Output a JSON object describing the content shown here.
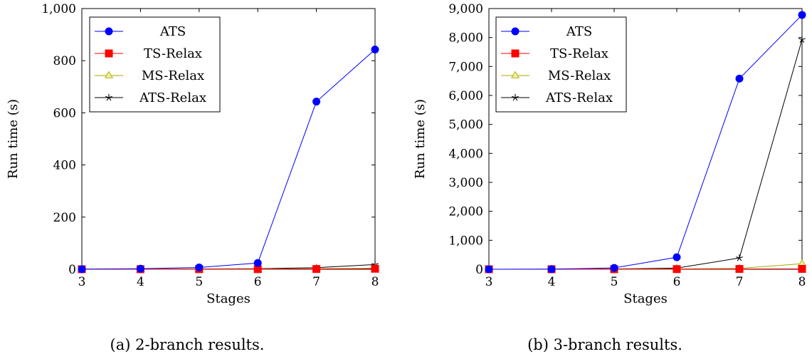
{
  "chart_data": [
    {
      "type": "line",
      "caption": "(a) 2-branch results.",
      "xlabel": "Stages",
      "ylabel": "Run time (s)",
      "xlim": [
        3,
        8
      ],
      "ylim": [
        0,
        1000
      ],
      "xticks": [
        3,
        4,
        5,
        6,
        7,
        8
      ],
      "yticks": [
        0,
        200,
        400,
        600,
        800,
        1000
      ],
      "ytick_labels": [
        "0",
        "200",
        "400",
        "600",
        "800",
        "1,000"
      ],
      "grid": false,
      "legend_position": "top-left",
      "x": [
        3,
        4,
        5,
        6,
        7,
        8
      ],
      "series": [
        {
          "name": "ATS",
          "color": "#0000ff",
          "marker": "circle",
          "values": [
            0.5,
            2,
            7,
            24,
            643,
            843
          ]
        },
        {
          "name": "TS-Relax",
          "color": "#ff0000",
          "marker": "square",
          "values": [
            0.1,
            0.2,
            0.3,
            0.5,
            1,
            2
          ]
        },
        {
          "name": "MS-Relax",
          "color": "#aaaa00",
          "marker": "triangle",
          "values": [
            0.1,
            0.2,
            0.4,
            0.8,
            2,
            4
          ]
        },
        {
          "name": "ATS-Relax",
          "color": "#000000",
          "marker": "star",
          "values": [
            0.2,
            0.4,
            1,
            2,
            6,
            18
          ]
        }
      ]
    },
    {
      "type": "line",
      "caption": "(b) 3-branch results.",
      "xlabel": "Stages",
      "ylabel": "Run time (s)",
      "xlim": [
        3,
        8
      ],
      "ylim": [
        0,
        9000
      ],
      "xticks": [
        3,
        4,
        5,
        6,
        7,
        8
      ],
      "yticks": [
        0,
        1000,
        2000,
        3000,
        4000,
        5000,
        6000,
        7000,
        8000,
        9000
      ],
      "ytick_labels": [
        "0",
        "1,000",
        "2,000",
        "3,000",
        "4,000",
        "5,000",
        "6,000",
        "7,000",
        "8,000",
        "9,000"
      ],
      "grid": false,
      "legend_position": "top-left",
      "x": [
        3,
        4,
        5,
        6,
        7,
        8
      ],
      "series": [
        {
          "name": "ATS",
          "color": "#0000ff",
          "marker": "circle",
          "values": [
            1,
            4,
            45,
            415,
            6580,
            8780
          ]
        },
        {
          "name": "TS-Relax",
          "color": "#ff0000",
          "marker": "square",
          "values": [
            0.5,
            1,
            2,
            5,
            10,
            12
          ]
        },
        {
          "name": "MS-Relax",
          "color": "#aaaa00",
          "marker": "triangle",
          "values": [
            0.5,
            1,
            3,
            10,
            30,
            190
          ]
        },
        {
          "name": "ATS-Relax",
          "color": "#000000",
          "marker": "star",
          "values": [
            1,
            2,
            10,
            40,
            390,
            7930
          ]
        }
      ]
    }
  ]
}
